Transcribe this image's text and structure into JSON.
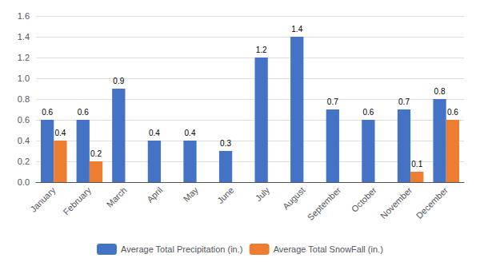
{
  "chart_data": {
    "type": "bar",
    "categories": [
      "January",
      "February",
      "March",
      "April",
      "May",
      "June",
      "July",
      "August",
      "September",
      "October",
      "November",
      "December"
    ],
    "series": [
      {
        "name": "Average Total Precipitation (in.)",
        "color": "#4472c4",
        "values": [
          0.6,
          0.6,
          0.9,
          0.4,
          0.4,
          0.3,
          1.2,
          1.4,
          0.7,
          0.6,
          0.7,
          0.8
        ]
      },
      {
        "name": "Average Total SnowFall (in.)",
        "color": "#ed7d31",
        "values": [
          0.4,
          0.2,
          0.0,
          0.0,
          0.0,
          0.0,
          0.0,
          0.0,
          0.0,
          0.0,
          0.1,
          0.6
        ],
        "value_labels": [
          "0.4",
          "0.2",
          null,
          null,
          null,
          null,
          null,
          null,
          null,
          null,
          "0.1",
          "0.6"
        ]
      }
    ],
    "ylim": [
      0,
      1.6
    ],
    "yticks": [
      {
        "value": 0,
        "label": "0.0"
      },
      0.2,
      0.4,
      0.6,
      0.8,
      {
        "value": 1,
        "label": "1.0"
      },
      1.2,
      1.4,
      1.6
    ],
    "grid": true,
    "legend": "bottom",
    "data_labels": true
  }
}
